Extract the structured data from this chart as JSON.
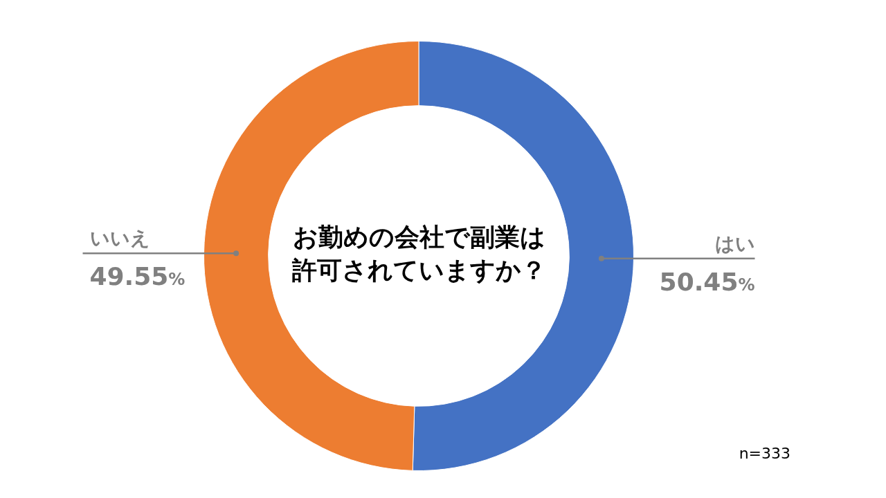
{
  "chart_data": {
    "type": "donut",
    "title": "お勤めの会社で副業は許可されていますか？",
    "categories": [
      "はい",
      "いいえ"
    ],
    "values": [
      50.45,
      49.55
    ],
    "colors": [
      "#4472c4",
      "#ed7d31"
    ],
    "value_labels": [
      "50.45%",
      "49.55%"
    ],
    "annotations": [
      "n=333"
    ],
    "legend": false
  }
}
